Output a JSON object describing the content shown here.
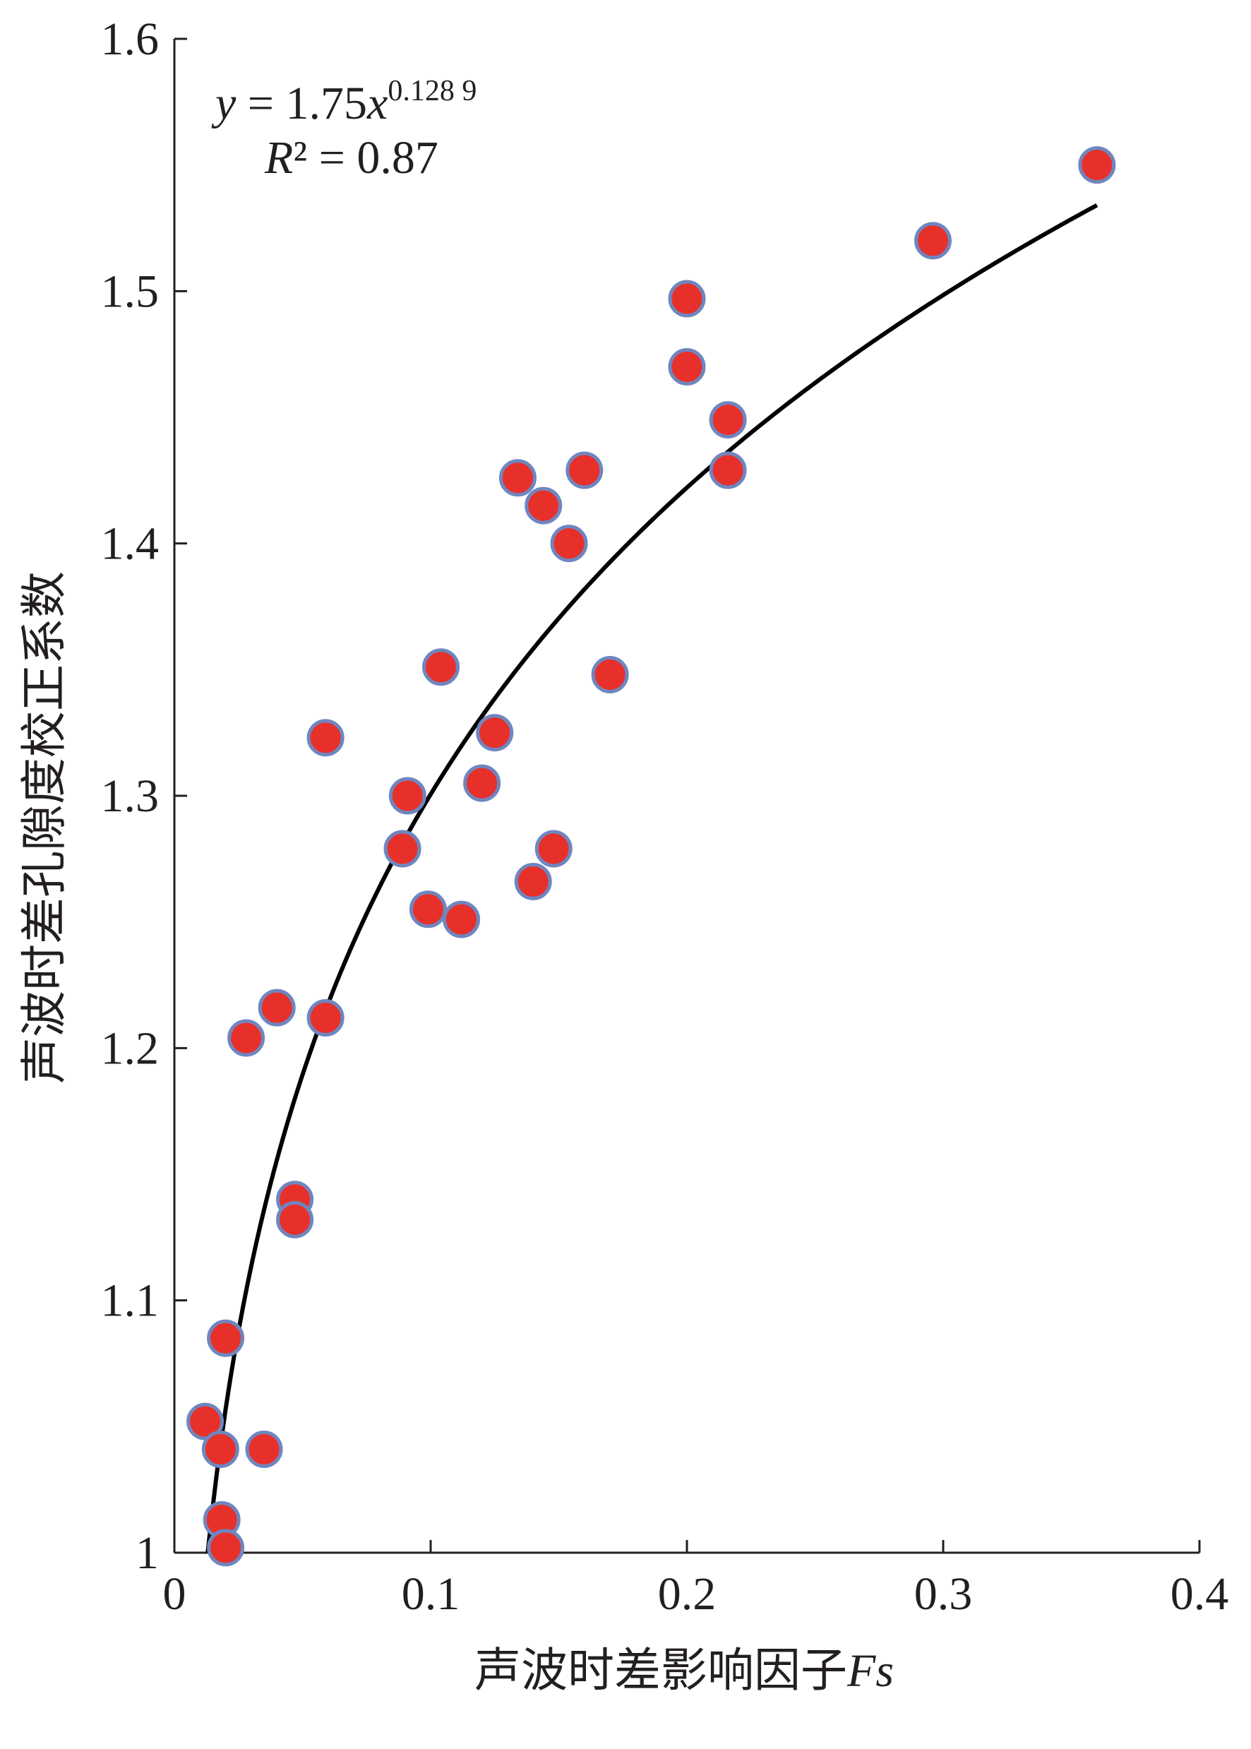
{
  "chart_data": {
    "type": "scatter",
    "xlabel": "声波时差影响因子",
    "xlabel_var": "Fs",
    "ylabel": "声波时差孔隙度校正系数",
    "annotation": {
      "eq_y": "y",
      "eq_mid": " = 1.75",
      "eq_x": "x",
      "eq_exp": "0.128 9",
      "r_var": "R",
      "r_rest": "² = 0.87"
    },
    "fit": {
      "a": 1.75,
      "b": 0.1289,
      "xrange": [
        0.013,
        0.36
      ],
      "color": "#000000"
    },
    "series": [
      {
        "name": "data",
        "color": "#e8302a",
        "edge_color": "#6f86bf",
        "x": [
          0.012,
          0.018,
          0.0185,
          0.02,
          0.02,
          0.035,
          0.047,
          0.047,
          0.028,
          0.04,
          0.059,
          0.059,
          0.089,
          0.091,
          0.099,
          0.112,
          0.104,
          0.12,
          0.125,
          0.14,
          0.148,
          0.134,
          0.144,
          0.154,
          0.16,
          0.17,
          0.2,
          0.2,
          0.216,
          0.216,
          0.296,
          0.36
        ],
        "values": [
          1.052,
          1.041,
          1.013,
          1.002,
          1.085,
          1.041,
          1.14,
          1.132,
          1.204,
          1.216,
          1.212,
          1.323,
          1.279,
          1.3,
          1.255,
          1.251,
          1.351,
          1.305,
          1.325,
          1.266,
          1.279,
          1.426,
          1.415,
          1.4,
          1.429,
          1.348,
          1.47,
          1.497,
          1.449,
          1.429,
          1.52,
          1.55
        ]
      }
    ],
    "xlim": [
      0,
      0.4
    ],
    "xticks": [
      0,
      0.1,
      0.2,
      0.3,
      0.4
    ],
    "ylim": [
      1,
      1.6
    ],
    "yticks": [
      1,
      1.1,
      1.2,
      1.3,
      1.4,
      1.5,
      1.6
    ]
  }
}
